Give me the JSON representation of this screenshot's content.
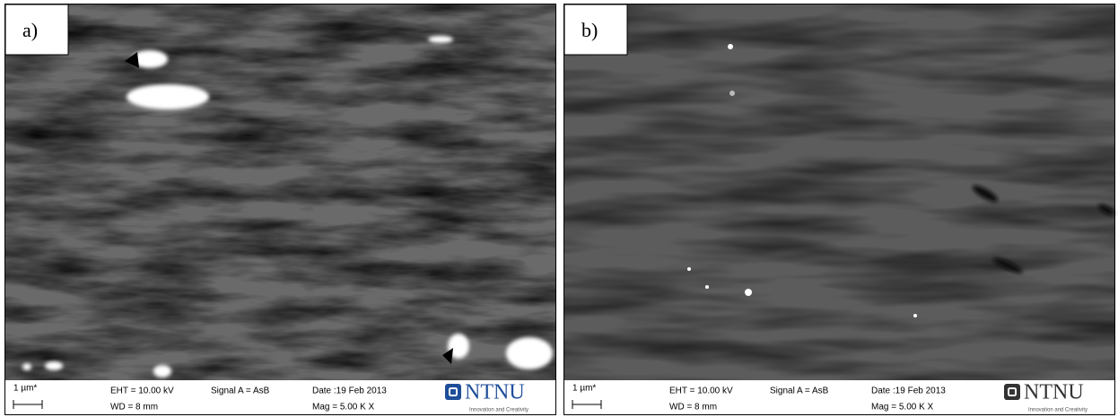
{
  "panels": [
    {
      "label": "a)",
      "scale_bar": "1 µm*",
      "eht": "EHT = 10.00 kV",
      "wd": "WD =  8 mm",
      "signal": "Signal A = AsB",
      "date": "Date :19 Feb 2013",
      "mag": "Mag =  5.00 K X",
      "logo": "NTNU",
      "tagline": "Innovation and Creativity"
    },
    {
      "label": "b)",
      "scale_bar": "1 µm*",
      "eht": "EHT = 10.00 kV",
      "wd": "WD =  8 mm",
      "signal": "Signal A = AsB",
      "date": "Date :19 Feb 2013",
      "mag": "Mag =  5.00 K X",
      "logo": "NTNU",
      "tagline": "Innovation and Creativity"
    }
  ]
}
